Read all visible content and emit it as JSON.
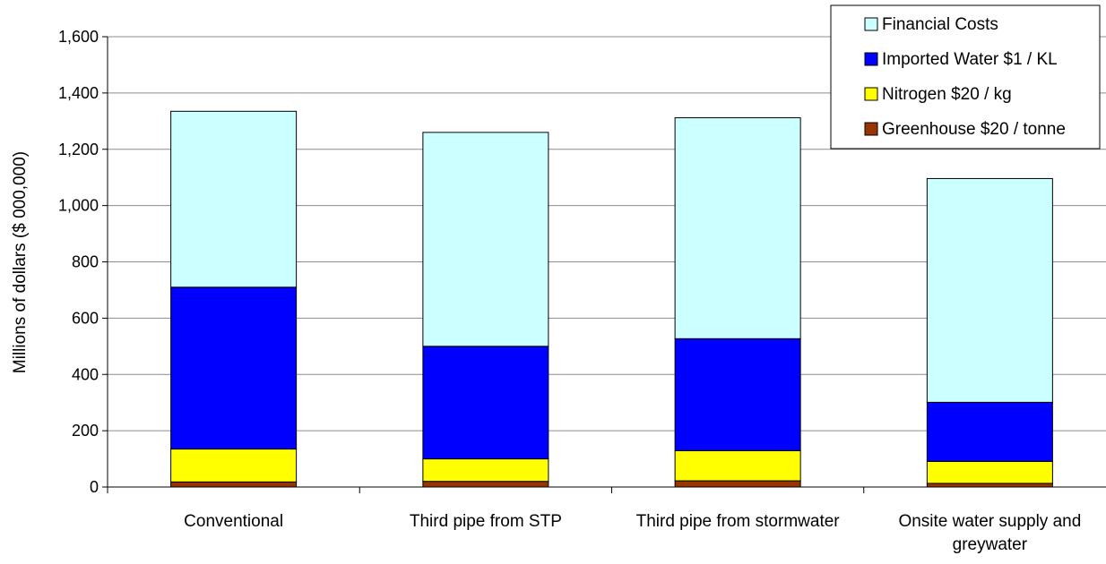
{
  "chart_data": {
    "type": "bar",
    "stacked": true,
    "categories": [
      "Conventional",
      "Third pipe from STP",
      "Third pipe from stormwater",
      "Onsite water supply and greywater"
    ],
    "category_lines": [
      [
        "Conventional"
      ],
      [
        "Third pipe from STP"
      ],
      [
        "Third pipe from stormwater"
      ],
      [
        "Onsite water supply and",
        "greywater"
      ]
    ],
    "series": [
      {
        "name": "Greenhouse $20 / tonne",
        "color": "#993300",
        "values": [
          18,
          20,
          22,
          13
        ]
      },
      {
        "name": "Nitrogen $20 / kg",
        "color": "#ffff00",
        "values": [
          117,
          80,
          107,
          78
        ]
      },
      {
        "name": "Imported Water $1 / KL",
        "color": "#0000ff",
        "values": [
          575,
          400,
          398,
          210
        ]
      },
      {
        "name": "Financial Costs",
        "color": "#ccffff",
        "values": [
          625,
          760,
          785,
          795
        ]
      }
    ],
    "legend_order": [
      "Financial Costs",
      "Imported Water $1 / KL",
      "Nitrogen $20 / kg",
      "Greenhouse $20 / tonne"
    ],
    "ylabel": "Millions of dollars ($ 000,000)",
    "xlabel": "",
    "ylim": [
      0,
      1600
    ],
    "yticks": [
      0,
      200,
      400,
      600,
      800,
      1000,
      1200,
      1400,
      1600
    ],
    "ytick_labels": [
      "0",
      "200",
      "400",
      "600",
      "800",
      "1,000",
      "1,200",
      "1,400",
      "1,600"
    ],
    "grid": true,
    "legend_position": "top-right"
  }
}
